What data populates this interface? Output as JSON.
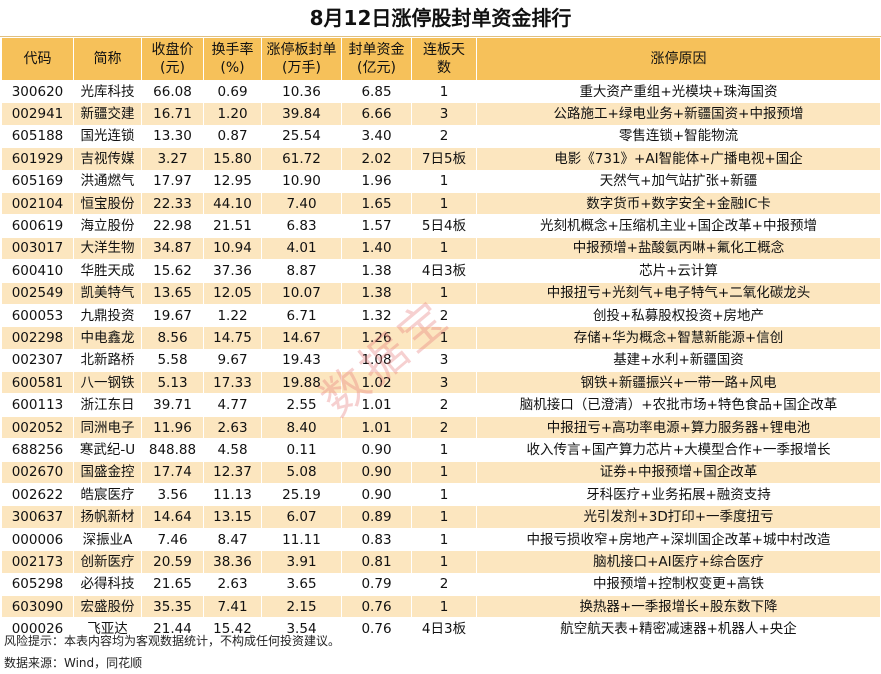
{
  "title": "8月12日涨停股封单资金排行",
  "headers": [
    {
      "l1": "代码",
      "l2": ""
    },
    {
      "l1": "简称",
      "l2": ""
    },
    {
      "l1": "收盘价",
      "l2": "(元)"
    },
    {
      "l1": "换手率",
      "l2": "(%)"
    },
    {
      "l1": "涨停板封单",
      "l2": "(万手)"
    },
    {
      "l1": "封单资金",
      "l2": "(亿元)"
    },
    {
      "l1": "连板天",
      "l2": "数"
    },
    {
      "l1": "涨停原因",
      "l2": ""
    }
  ],
  "rows": [
    [
      "300620",
      "光库科技",
      "66.08",
      "0.69",
      "10.36",
      "6.85",
      "1",
      "重大资产重组+光模块+珠海国资"
    ],
    [
      "002941",
      "新疆交建",
      "16.71",
      "1.20",
      "39.84",
      "6.66",
      "3",
      "公路施工+绿电业务+新疆国资+中报预增"
    ],
    [
      "605188",
      "国光连锁",
      "13.30",
      "0.87",
      "25.54",
      "3.40",
      "2",
      "零售连锁+智能物流"
    ],
    [
      "601929",
      "吉视传媒",
      "3.27",
      "15.80",
      "61.72",
      "2.02",
      "7日5板",
      "电影《731》+AI智能体+广播电视+国企"
    ],
    [
      "605169",
      "洪通燃气",
      "17.97",
      "12.95",
      "10.90",
      "1.96",
      "1",
      "天然气+加气站扩张+新疆"
    ],
    [
      "002104",
      "恒宝股份",
      "22.33",
      "44.10",
      "7.40",
      "1.65",
      "1",
      "数字货币+数字安全+金融IC卡"
    ],
    [
      "600619",
      "海立股份",
      "22.98",
      "21.51",
      "6.83",
      "1.57",
      "5日4板",
      "光刻机概念+压缩机主业+国企改革+中报预增"
    ],
    [
      "003017",
      "大洋生物",
      "34.87",
      "10.94",
      "4.01",
      "1.40",
      "1",
      "中报预增+盐酸氨丙啉+氟化工概念"
    ],
    [
      "600410",
      "华胜天成",
      "15.62",
      "37.36",
      "8.87",
      "1.38",
      "4日3板",
      "芯片+云计算"
    ],
    [
      "002549",
      "凯美特气",
      "13.65",
      "12.05",
      "10.07",
      "1.38",
      "1",
      "中报扭亏+光刻气+电子特气+二氧化碳龙头"
    ],
    [
      "600053",
      "九鼎投资",
      "19.67",
      "1.22",
      "6.71",
      "1.32",
      "2",
      "创投+私募股权投资+房地产"
    ],
    [
      "002298",
      "中电鑫龙",
      "8.56",
      "14.75",
      "14.67",
      "1.26",
      "1",
      "存储+华为概念+智慧新能源+信创"
    ],
    [
      "002307",
      "北新路桥",
      "5.58",
      "9.67",
      "19.43",
      "1.08",
      "3",
      "基建+水利+新疆国资"
    ],
    [
      "600581",
      "八一钢铁",
      "5.13",
      "17.33",
      "19.88",
      "1.02",
      "3",
      "钢铁+新疆振兴+一带一路+风电"
    ],
    [
      "600113",
      "浙江东日",
      "39.71",
      "4.77",
      "2.55",
      "1.01",
      "2",
      "脑机接口（已澄清）+农批市场+特色食品+国企改革"
    ],
    [
      "002052",
      "同洲电子",
      "11.96",
      "2.63",
      "8.40",
      "1.01",
      "2",
      "中报扭亏+高功率电源+算力服务器+锂电池"
    ],
    [
      "688256",
      "寒武纪-U",
      "848.88",
      "4.58",
      "0.11",
      "0.90",
      "1",
      "收入传言+国产算力芯片+大模型合作+一季报增长"
    ],
    [
      "002670",
      "国盛金控",
      "17.74",
      "12.37",
      "5.08",
      "0.90",
      "1",
      "证券+中报预增+国企改革"
    ],
    [
      "002622",
      "皓宸医疗",
      "3.56",
      "11.13",
      "25.19",
      "0.90",
      "1",
      "牙科医疗+业务拓展+融资支持"
    ],
    [
      "300637",
      "扬帆新材",
      "14.64",
      "13.15",
      "6.07",
      "0.89",
      "1",
      "光引发剂+3D打印+一季度扭亏"
    ],
    [
      "000006",
      "深振业A",
      "7.46",
      "8.47",
      "11.11",
      "0.83",
      "1",
      "中报亏损收窄+房地产+深圳国企改革+城中村改造"
    ],
    [
      "002173",
      "创新医疗",
      "20.59",
      "38.36",
      "3.91",
      "0.81",
      "1",
      "脑机接口+AI医疗+综合医疗"
    ],
    [
      "605298",
      "必得科技",
      "21.65",
      "2.63",
      "3.65",
      "0.79",
      "2",
      "中报预增+控制权变更+高铁"
    ],
    [
      "603090",
      "宏盛股份",
      "35.35",
      "7.41",
      "2.15",
      "0.76",
      "1",
      "换热器+一季报增长+股东数下降"
    ],
    [
      "000026",
      "飞亚达",
      "21.44",
      "15.42",
      "3.54",
      "0.76",
      "4日3板",
      "航空航天表+精密减速器+机器人+央企"
    ]
  ],
  "footer": {
    "risk": "风险提示：本表内容均为客观数据统计，不构成任何投资建议。",
    "source": "数据来源：Wind，同花顺"
  },
  "watermark": "数据宝"
}
